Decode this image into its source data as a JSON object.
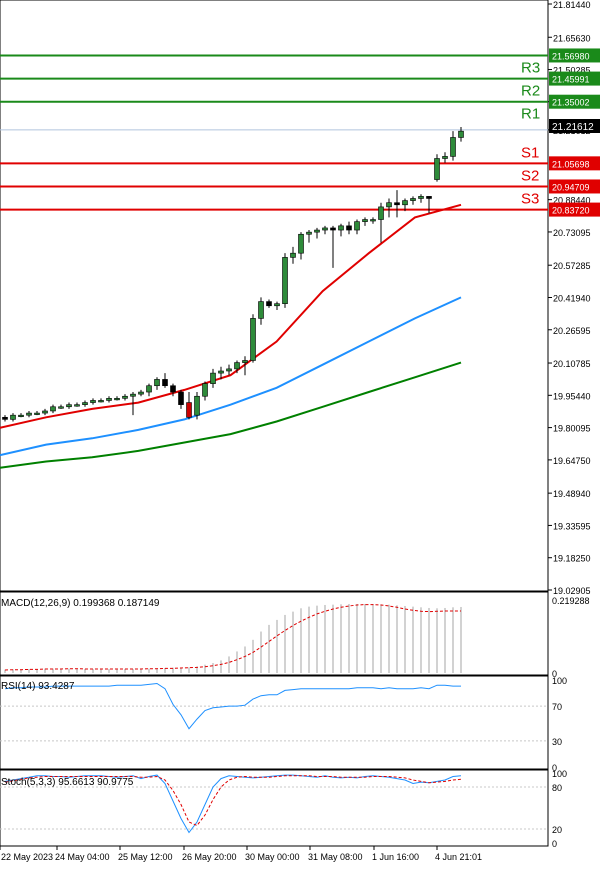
{
  "chart_data": [
    {
      "type": "candlestick",
      "panel": "price",
      "y_ticks": [
        "21.81440",
        "21.65630",
        "21.50285",
        "21.35002",
        "21.21612",
        "20.88440",
        "20.73095",
        "20.57285",
        "20.41940",
        "20.26595",
        "20.10785",
        "19.95440",
        "19.80095",
        "19.64750",
        "19.48940",
        "19.33595",
        "19.18250",
        "19.02905"
      ],
      "ylim": [
        19.02905,
        21.8144
      ],
      "x_ticks": [
        "22 May 2023",
        "24 May 04:00",
        "25 May 12:00",
        "26 May 20:00",
        "30 May 00:00",
        "31 May 08:00",
        "1 Jun 16:00",
        "4 Jun 21:01"
      ],
      "current_price": "21.21612",
      "levels": [
        {
          "label": "R3",
          "price": 21.5698,
          "price_label": "21.56980",
          "color": "#1a8a1a"
        },
        {
          "label": "R2",
          "price": 21.45991,
          "price_label": "21.45991",
          "color": "#1a8a1a"
        },
        {
          "label": "R1",
          "price": 21.35002,
          "price_label": "21.35002",
          "color": "#1a8a1a"
        },
        {
          "label": "S1",
          "price": 21.05698,
          "price_label": "21.05698",
          "color": "#e00000"
        },
        {
          "label": "S2",
          "price": 20.94709,
          "price_label": "20.94709",
          "color": "#e00000"
        },
        {
          "label": "S3",
          "price": 20.8372,
          "price_label": "20.83720",
          "color": "#e00000"
        }
      ],
      "candles": [
        [
          19.85,
          19.86,
          19.83,
          19.84
        ],
        [
          19.84,
          19.87,
          19.83,
          19.86
        ],
        [
          19.86,
          19.87,
          19.85,
          19.86
        ],
        [
          19.86,
          19.88,
          19.85,
          19.87
        ],
        [
          19.87,
          19.88,
          19.86,
          19.87
        ],
        [
          19.87,
          19.89,
          19.86,
          19.88
        ],
        [
          19.88,
          19.91,
          19.87,
          19.9
        ],
        [
          19.9,
          19.91,
          19.89,
          19.9
        ],
        [
          19.9,
          19.92,
          19.89,
          19.91
        ],
        [
          19.91,
          19.92,
          19.9,
          19.91
        ],
        [
          19.91,
          19.93,
          19.9,
          19.92
        ],
        [
          19.92,
          19.94,
          19.91,
          19.93
        ],
        [
          19.93,
          19.94,
          19.92,
          19.93
        ],
        [
          19.93,
          19.95,
          19.92,
          19.94
        ],
        [
          19.94,
          19.95,
          19.93,
          19.94
        ],
        [
          19.94,
          19.96,
          19.93,
          19.95
        ],
        [
          19.95,
          19.97,
          19.86,
          19.96
        ],
        [
          19.96,
          19.98,
          19.95,
          19.97
        ],
        [
          19.97,
          20.01,
          19.95,
          20.0
        ],
        [
          20.0,
          20.04,
          19.98,
          20.03
        ],
        [
          20.03,
          20.06,
          19.99,
          20.0
        ],
        [
          20.0,
          20.01,
          19.95,
          19.97
        ],
        [
          19.97,
          19.98,
          19.89,
          19.91
        ],
        [
          19.92,
          19.97,
          19.84,
          19.85
        ],
        [
          19.86,
          19.97,
          19.84,
          19.95
        ],
        [
          19.95,
          20.02,
          19.93,
          20.01
        ],
        [
          20.01,
          20.08,
          19.99,
          20.06
        ],
        [
          20.06,
          20.09,
          20.03,
          20.07
        ],
        [
          20.07,
          20.1,
          20.05,
          20.08
        ],
        [
          20.08,
          20.12,
          20.06,
          20.11
        ],
        [
          20.11,
          20.14,
          20.05,
          20.12
        ],
        [
          20.12,
          20.34,
          20.11,
          20.32
        ],
        [
          20.32,
          20.42,
          20.29,
          20.4
        ],
        [
          20.4,
          20.41,
          20.37,
          20.38
        ],
        [
          20.38,
          20.4,
          20.36,
          20.39
        ],
        [
          20.39,
          20.63,
          20.37,
          20.61
        ],
        [
          20.61,
          20.66,
          20.58,
          20.63
        ],
        [
          20.63,
          20.73,
          20.6,
          20.72
        ],
        [
          20.72,
          20.74,
          20.68,
          20.73
        ],
        [
          20.73,
          20.75,
          20.7,
          20.74
        ],
        [
          20.74,
          20.76,
          20.72,
          20.75
        ],
        [
          20.75,
          20.76,
          20.56,
          20.74
        ],
        [
          20.74,
          20.77,
          20.71,
          20.76
        ],
        [
          20.76,
          20.78,
          20.72,
          20.74
        ],
        [
          20.74,
          20.79,
          20.72,
          20.78
        ],
        [
          20.78,
          20.8,
          20.76,
          20.79
        ],
        [
          20.79,
          20.8,
          20.77,
          20.79
        ],
        [
          20.79,
          20.87,
          20.68,
          20.85
        ],
        [
          20.85,
          20.89,
          20.8,
          20.87
        ],
        [
          20.87,
          20.93,
          20.8,
          20.86
        ],
        [
          20.86,
          20.89,
          20.83,
          20.88
        ],
        [
          20.88,
          20.9,
          20.86,
          20.89
        ],
        [
          20.89,
          20.91,
          20.87,
          20.9
        ],
        [
          20.9,
          20.9,
          20.82,
          20.89
        ],
        [
          20.98,
          21.1,
          20.97,
          21.08
        ],
        [
          21.08,
          21.11,
          21.06,
          21.09
        ],
        [
          21.09,
          21.21,
          21.07,
          21.18
        ],
        [
          21.18,
          21.23,
          21.16,
          21.21
        ]
      ],
      "moving_averages": [
        {
          "color": "#e00000",
          "values": [
            19.8,
            19.85,
            19.89,
            19.92,
            19.98,
            20.05,
            20.21,
            20.45,
            20.63,
            20.8,
            20.86
          ]
        },
        {
          "color": "#1e90ff",
          "values": [
            19.67,
            19.72,
            19.75,
            19.79,
            19.84,
            19.91,
            19.99,
            20.1,
            20.21,
            20.32,
            20.42
          ]
        },
        {
          "color": "#008000",
          "values": [
            19.61,
            19.64,
            19.66,
            19.69,
            19.73,
            19.77,
            19.83,
            19.9,
            19.97,
            20.04,
            20.11
          ]
        }
      ]
    },
    {
      "type": "histogram",
      "panel": "macd",
      "label": "MACD(12,26,9) 0.199368 0.187149",
      "y_ticks": [
        "0.219288",
        "0"
      ],
      "ylim": [
        0,
        0.22
      ],
      "histogram": [
        0.01,
        0.011,
        0.011,
        0.012,
        0.012,
        0.013,
        0.013,
        0.013,
        0.013,
        0.012,
        0.012,
        0.012,
        0.012,
        0.012,
        0.012,
        0.012,
        0.012,
        0.013,
        0.013,
        0.014,
        0.015,
        0.016,
        0.016,
        0.017,
        0.02,
        0.025,
        0.03,
        0.038,
        0.05,
        0.065,
        0.08,
        0.1,
        0.125,
        0.145,
        0.16,
        0.175,
        0.185,
        0.195,
        0.2,
        0.203,
        0.205,
        0.206,
        0.207,
        0.208,
        0.208,
        0.208,
        0.208,
        0.207,
        0.206,
        0.204,
        0.202,
        0.2,
        0.198,
        0.196,
        0.195,
        0.196,
        0.198,
        0.199
      ],
      "signal": [
        0.009,
        0.01,
        0.01,
        0.011,
        0.011,
        0.012,
        0.012,
        0.012,
        0.013,
        0.013,
        0.012,
        0.012,
        0.012,
        0.012,
        0.012,
        0.012,
        0.012,
        0.012,
        0.013,
        0.013,
        0.014,
        0.014,
        0.015,
        0.016,
        0.017,
        0.019,
        0.022,
        0.026,
        0.032,
        0.04,
        0.05,
        0.062,
        0.078,
        0.095,
        0.112,
        0.128,
        0.143,
        0.156,
        0.168,
        0.178,
        0.186,
        0.193,
        0.198,
        0.202,
        0.205,
        0.206,
        0.206,
        0.205,
        0.202,
        0.198,
        0.193,
        0.189,
        0.186,
        0.185,
        0.186,
        0.187,
        0.187,
        0.187
      ]
    },
    {
      "type": "line",
      "panel": "rsi",
      "label": "RSI(14) 93.4287",
      "y_ticks": [
        "100",
        "70",
        "30",
        "0"
      ],
      "ylim": [
        0,
        100
      ],
      "values": [
        90,
        91,
        91,
        92,
        92,
        92,
        93,
        93,
        93,
        93,
        93,
        93,
        93,
        93,
        94,
        94,
        94,
        94,
        95,
        96,
        90,
        72,
        60,
        44,
        55,
        65,
        68,
        69,
        70,
        70,
        71,
        78,
        82,
        83,
        83,
        88,
        89,
        90,
        90,
        90,
        90,
        90,
        90,
        90,
        91,
        91,
        91,
        90,
        91,
        90,
        90,
        90,
        91,
        90,
        94,
        94,
        93,
        93
      ]
    },
    {
      "type": "line",
      "panel": "stoch",
      "label": "Stoch(5,3,3) 95.6613 90.9775",
      "y_ticks": [
        "100",
        "80",
        "20",
        "0"
      ],
      "ylim": [
        0,
        100
      ],
      "series": [
        {
          "color": "#1e90ff",
          "values": [
            88,
            90,
            92,
            94,
            96,
            96,
            95,
            95,
            94,
            95,
            96,
            96,
            96,
            95,
            94,
            95,
            96,
            92,
            95,
            97,
            85,
            60,
            35,
            15,
            30,
            55,
            80,
            92,
            96,
            95,
            94,
            93,
            94,
            95,
            96,
            97,
            97,
            96,
            95,
            94,
            96,
            94,
            93,
            94,
            93,
            95,
            96,
            95,
            94,
            92,
            90,
            85,
            87,
            86,
            88,
            90,
            95,
            96
          ]
        },
        {
          "color": "#e00000",
          "values": [
            87,
            89,
            91,
            93,
            94,
            95,
            95,
            95,
            95,
            95,
            95,
            95,
            95,
            95,
            95,
            95,
            95,
            94,
            94,
            95,
            90,
            75,
            55,
            30,
            25,
            40,
            62,
            80,
            90,
            94,
            95,
            94,
            94,
            94,
            95,
            96,
            96,
            96,
            96,
            95,
            95,
            95,
            94,
            94,
            94,
            94,
            95,
            95,
            95,
            94,
            93,
            90,
            88,
            86,
            87,
            88,
            90,
            91
          ]
        }
      ]
    }
  ]
}
